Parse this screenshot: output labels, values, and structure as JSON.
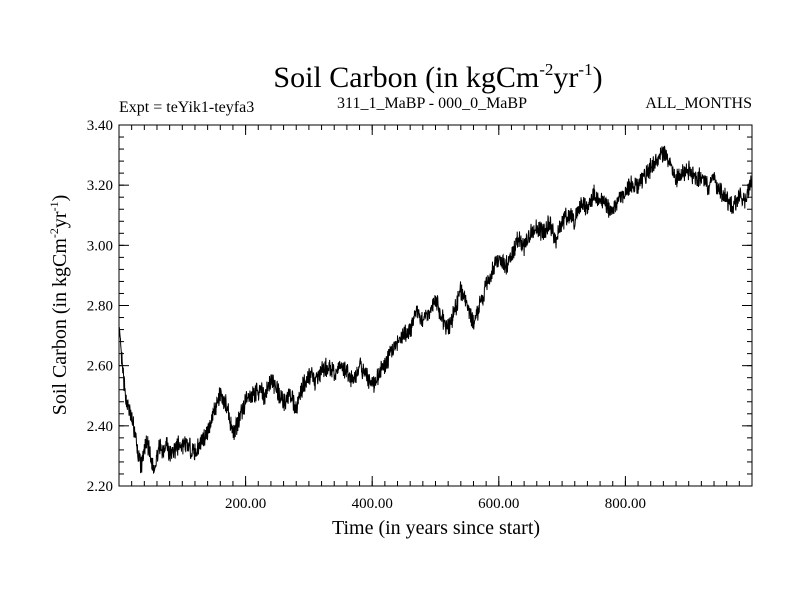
{
  "chart_data": {
    "type": "line",
    "title": {
      "prefix": "Soil Carbon (in kgCm",
      "sup1": "-2",
      "mid": "yr",
      "sup2": "-1",
      "suffix": ")"
    },
    "subtitle_left": "Expt = teYik1-teyfa3",
    "subtitle_center": "311_1_MaBP - 000_0_MaBP",
    "subtitle_right": "ALL_MONTHS",
    "xlabel": "Time (in years since start)",
    "ylabel": {
      "prefix": "Soil Carbon (in kgCm",
      "sup1": "-2",
      "mid": "yr",
      "sup2": "-1",
      "suffix": ")"
    },
    "xlim": [
      0,
      1000
    ],
    "ylim": [
      2.2,
      3.4
    ],
    "x_ticks": [
      200,
      400,
      600,
      800
    ],
    "x_tick_labels": [
      "200.00",
      "400.00",
      "600.00",
      "800.00"
    ],
    "y_ticks": [
      2.2,
      2.4,
      2.6,
      2.8,
      3.0,
      3.2,
      3.4
    ],
    "y_tick_labels": [
      "2.20",
      "2.40",
      "2.60",
      "2.80",
      "3.00",
      "3.20",
      "3.40"
    ],
    "series": [
      {
        "name": "Soil Carbon",
        "color": "#000000",
        "x": [
          0,
          5,
          10,
          15,
          20,
          25,
          30,
          35,
          40,
          45,
          50,
          55,
          60,
          65,
          70,
          75,
          80,
          90,
          100,
          110,
          120,
          130,
          140,
          150,
          160,
          170,
          180,
          190,
          200,
          210,
          220,
          230,
          240,
          250,
          260,
          270,
          280,
          290,
          300,
          310,
          320,
          330,
          340,
          350,
          360,
          370,
          380,
          390,
          400,
          410,
          420,
          430,
          440,
          450,
          460,
          470,
          480,
          490,
          500,
          510,
          520,
          530,
          540,
          550,
          560,
          570,
          580,
          590,
          600,
          610,
          620,
          630,
          640,
          650,
          660,
          670,
          680,
          690,
          700,
          710,
          720,
          730,
          740,
          750,
          760,
          770,
          780,
          790,
          800,
          810,
          820,
          830,
          840,
          850,
          860,
          870,
          880,
          890,
          900,
          910,
          920,
          930,
          940,
          950,
          960,
          970,
          980,
          990,
          1000
        ],
        "values": [
          2.72,
          2.6,
          2.5,
          2.46,
          2.42,
          2.38,
          2.3,
          2.27,
          2.32,
          2.34,
          2.29,
          2.26,
          2.3,
          2.33,
          2.32,
          2.35,
          2.3,
          2.33,
          2.34,
          2.33,
          2.31,
          2.35,
          2.38,
          2.45,
          2.5,
          2.47,
          2.38,
          2.42,
          2.48,
          2.5,
          2.52,
          2.5,
          2.55,
          2.52,
          2.48,
          2.5,
          2.46,
          2.53,
          2.57,
          2.55,
          2.58,
          2.6,
          2.57,
          2.6,
          2.58,
          2.55,
          2.6,
          2.57,
          2.53,
          2.57,
          2.6,
          2.65,
          2.67,
          2.7,
          2.72,
          2.78,
          2.75,
          2.78,
          2.82,
          2.76,
          2.72,
          2.78,
          2.85,
          2.8,
          2.74,
          2.8,
          2.86,
          2.92,
          2.95,
          2.93,
          2.96,
          3.02,
          3.0,
          3.04,
          3.06,
          3.04,
          3.08,
          3.02,
          3.08,
          3.1,
          3.08,
          3.14,
          3.12,
          3.17,
          3.15,
          3.13,
          3.12,
          3.15,
          3.18,
          3.2,
          3.2,
          3.23,
          3.26,
          3.28,
          3.31,
          3.27,
          3.22,
          3.24,
          3.25,
          3.22,
          3.23,
          3.2,
          3.22,
          3.18,
          3.15,
          3.13,
          3.17,
          3.15,
          3.22
        ]
      }
    ]
  }
}
